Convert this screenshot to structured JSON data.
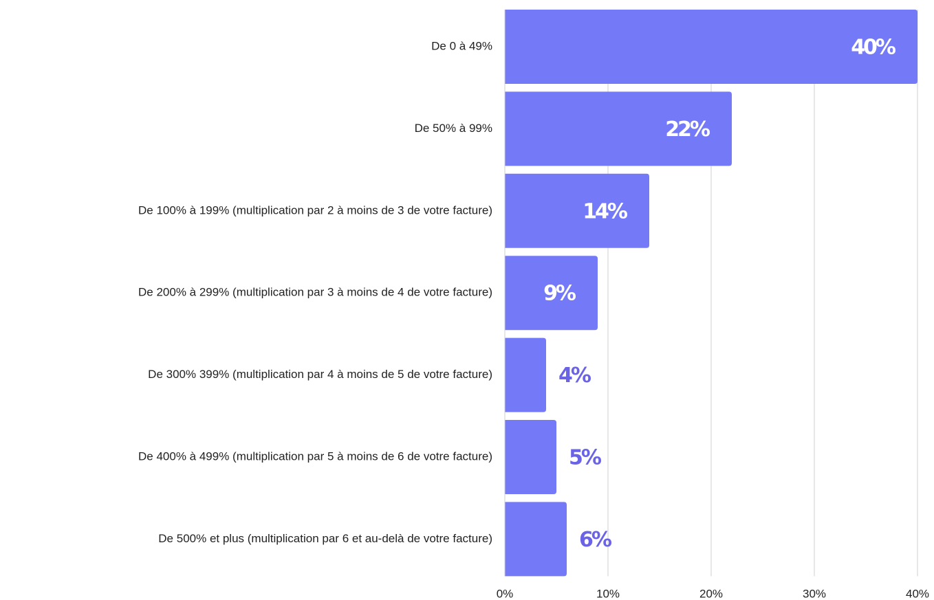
{
  "chart_data": {
    "type": "bar",
    "orientation": "horizontal",
    "categories": [
      "De 0 à 49%",
      "De 50% à 99%",
      "De 100% à 199% (multiplication par 2 à moins de 3 de votre facture)",
      "De 200% à 299% (multiplication par 3 à moins de 4 de votre facture)",
      "De 300% 399% (multiplication par 4 à moins de 5 de votre facture)",
      "De 400% à 499% (multiplication par 5 à moins de 6 de votre facture)",
      "De 500% et plus (multiplication par 6 et au-delà de votre facture)"
    ],
    "values": [
      40,
      22,
      14,
      9,
      4,
      5,
      6
    ],
    "value_labels": [
      "40%",
      "22%",
      "14%",
      "9%",
      "4%",
      "5%",
      "6%"
    ],
    "color": "#7479f7",
    "label_color_outside": "#6b63e6",
    "label_color_inside": "#ffffff",
    "xlim": [
      0,
      40
    ],
    "xticks": [
      {
        "value": 0,
        "label": "0%"
      },
      {
        "value": 10,
        "label": "10%"
      },
      {
        "value": 20,
        "label": "20%"
      },
      {
        "value": 30,
        "label": "30%"
      },
      {
        "value": 40,
        "label": "40%"
      }
    ],
    "grid": true
  }
}
